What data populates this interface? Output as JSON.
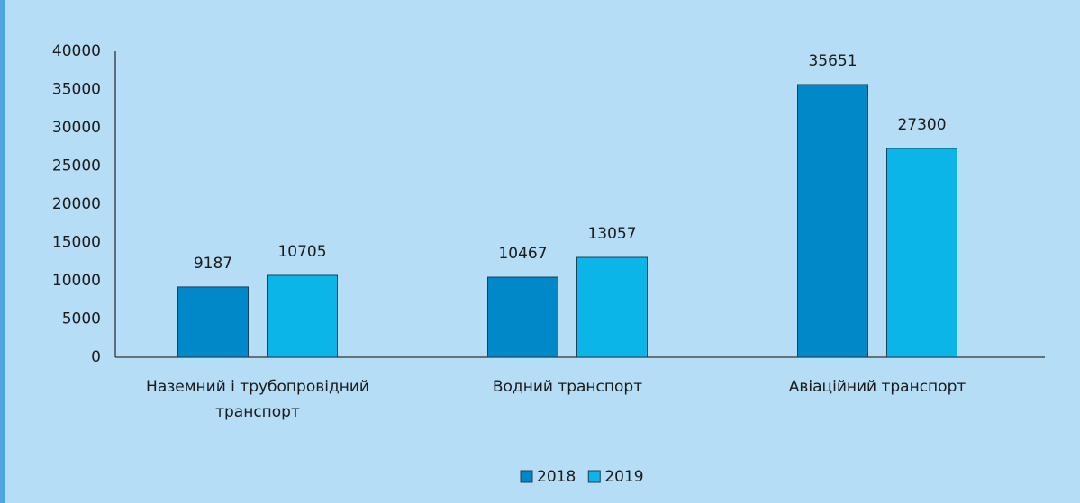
{
  "chart_data": {
    "type": "bar",
    "categories": [
      "Наземний і трубопровідний транспорт",
      "Водний транспорт",
      "Авіаційний транспорт"
    ],
    "series": [
      {
        "name": "2018",
        "color": "#0088c9",
        "values": [
          9187,
          10467,
          35651
        ]
      },
      {
        "name": "2019",
        "color": "#0bb5e8",
        "values": [
          10705,
          13057,
          27300
        ]
      }
    ],
    "ylim": [
      0,
      40000
    ],
    "yticks": [
      0,
      5000,
      10000,
      15000,
      20000,
      25000,
      30000,
      35000,
      40000
    ],
    "grid": false,
    "legend": "bottom"
  }
}
